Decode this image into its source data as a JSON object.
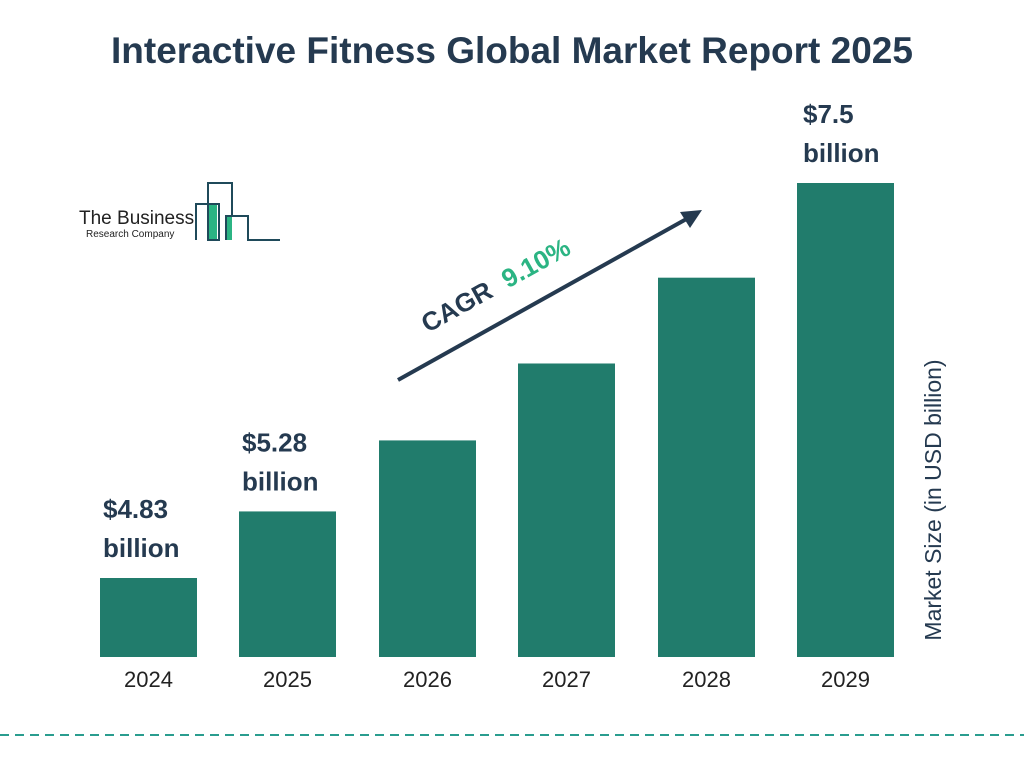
{
  "chart_data": {
    "type": "bar",
    "title": "Interactive Fitness Global Market Report 2025",
    "ylabel": "Market Size (in USD billion)",
    "xlabel": "",
    "categories": [
      "2024",
      "2025",
      "2026",
      "2027",
      "2028",
      "2029"
    ],
    "values": [
      4.83,
      5.28,
      5.76,
      6.28,
      6.86,
      7.5
    ],
    "data_labels": [
      {
        "index": 0,
        "line1": "$4.83",
        "line2": "billion"
      },
      {
        "index": 1,
        "line1": "$5.28",
        "line2": "billion"
      },
      {
        "index": 5,
        "line1": "$7.5",
        "line2": "billion"
      }
    ],
    "annotation": {
      "prefix": "CAGR",
      "value": "9.10%"
    },
    "grid": false,
    "legend": "none",
    "colors": {
      "bar": "#217c6c",
      "text": "#253a50",
      "cagr": "#2bb483",
      "divider": "#2a9d8f"
    }
  },
  "logo": {
    "line1": "The Business",
    "line2": "Research Company"
  }
}
